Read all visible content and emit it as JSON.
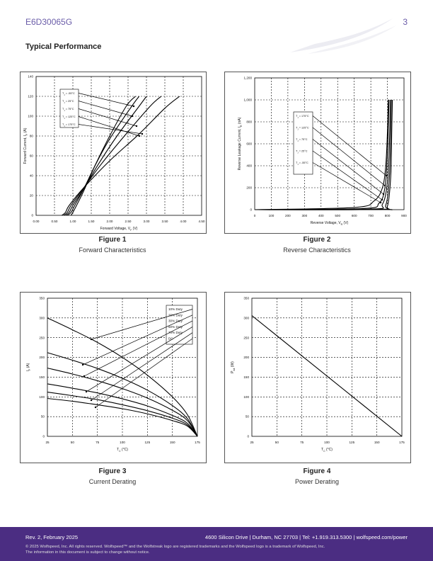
{
  "header": {
    "part_number": "E6D30065G",
    "page_number": "3"
  },
  "section_title": "Typical Performance",
  "figures": [
    {
      "label": "Figure 1",
      "caption": "Forward Characteristics"
    },
    {
      "label": "Figure 2",
      "caption": "Reverse Characteristics"
    },
    {
      "label": "Figure 3",
      "caption": "Current Derating"
    },
    {
      "label": "Figure 4",
      "caption": "Power Derating"
    }
  ],
  "chart_data": [
    {
      "type": "line",
      "title": "",
      "xlabel": "Forward Voltage, V_F (V)",
      "ylabel": "Forward Current, I_F (A)",
      "xlim": [
        0,
        4.5
      ],
      "ylim": [
        0,
        140
      ],
      "xticks": [
        "0.00",
        "0.50",
        "1.00",
        "1.50",
        "2.00",
        "2.50",
        "3.00",
        "3.50",
        "4.00",
        "4.50"
      ],
      "yticks": [
        "0",
        "20",
        "40",
        "60",
        "80",
        "100",
        "120",
        "140"
      ],
      "grid": true,
      "legend": "top-left",
      "series": [
        {
          "name": "T_J = -55°C",
          "points": [
            [
              0.95,
              0
            ],
            [
              1.0,
              3
            ],
            [
              1.1,
              10
            ],
            [
              1.3,
              25
            ],
            [
              1.6,
              50
            ],
            [
              2.0,
              80
            ],
            [
              2.45,
              110
            ],
            [
              2.7,
              120
            ]
          ]
        },
        {
          "name": "T_J = 25°C",
          "points": [
            [
              0.85,
              0
            ],
            [
              0.95,
              3
            ],
            [
              1.05,
              10
            ],
            [
              1.3,
              27
            ],
            [
              1.6,
              50
            ],
            [
              2.0,
              77
            ],
            [
              2.6,
              110
            ],
            [
              2.8,
              120
            ]
          ]
        },
        {
          "name": "T_J = 75°C",
          "points": [
            [
              0.8,
              0
            ],
            [
              0.9,
              3
            ],
            [
              1.0,
              10
            ],
            [
              1.3,
              27
            ],
            [
              1.7,
              52
            ],
            [
              2.2,
              80
            ],
            [
              2.8,
              110
            ],
            [
              3.0,
              120
            ]
          ]
        },
        {
          "name": "T_J = 125°C",
          "points": [
            [
              0.75,
              0
            ],
            [
              0.85,
              3
            ],
            [
              0.95,
              10
            ],
            [
              1.3,
              28
            ],
            [
              1.8,
              53
            ],
            [
              2.4,
              80
            ],
            [
              3.1,
              110
            ],
            [
              3.4,
              120
            ]
          ]
        },
        {
          "name": "T_J = 175°C",
          "points": [
            [
              0.7,
              0
            ],
            [
              0.8,
              3
            ],
            [
              0.9,
              10
            ],
            [
              1.3,
              28
            ],
            [
              2.0,
              55
            ],
            [
              2.8,
              82
            ],
            [
              3.5,
              108
            ],
            [
              3.9,
              120
            ]
          ]
        }
      ]
    },
    {
      "type": "line",
      "title": "",
      "xlabel": "Reverse Voltage, V_R (V)",
      "ylabel": "Reverse Leakage Current, I_R (nA)",
      "xlim": [
        0,
        900
      ],
      "ylim": [
        0,
        1200
      ],
      "xticks": [
        "0",
        "100",
        "200",
        "300",
        "400",
        "500",
        "600",
        "700",
        "800",
        "900"
      ],
      "yticks": [
        "0",
        "200",
        "400",
        "600",
        "800",
        "1,000",
        "1,200"
      ],
      "grid": true,
      "legend": "center",
      "series": [
        {
          "name": "T_J = 175°C",
          "points": [
            [
              0,
              0
            ],
            [
              600,
              20
            ],
            [
              720,
              80
            ],
            [
              770,
              200
            ],
            [
              790,
              400
            ],
            [
              800,
              700
            ],
            [
              805,
              1000
            ]
          ]
        },
        {
          "name": "T_J = 125°C",
          "points": [
            [
              0,
              0
            ],
            [
              650,
              10
            ],
            [
              750,
              60
            ],
            [
              785,
              200
            ],
            [
              800,
              500
            ],
            [
              810,
              1000
            ]
          ]
        },
        {
          "name": "T_J = 75°C",
          "points": [
            [
              0,
              0
            ],
            [
              700,
              5
            ],
            [
              770,
              50
            ],
            [
              800,
              250
            ],
            [
              812,
              600
            ],
            [
              818,
              1000
            ]
          ]
        },
        {
          "name": "T_J = 25°C",
          "points": [
            [
              0,
              0
            ],
            [
              740,
              3
            ],
            [
              790,
              40
            ],
            [
              812,
              300
            ],
            [
              820,
              700
            ],
            [
              824,
              1000
            ]
          ]
        },
        {
          "name": "T_J = -55°C",
          "points": [
            [
              0,
              0
            ],
            [
              760,
              2
            ],
            [
              800,
              30
            ],
            [
              820,
              300
            ],
            [
              826,
              700
            ],
            [
              830,
              1000
            ]
          ]
        }
      ]
    },
    {
      "type": "line",
      "title": "",
      "xlabel": "T_C (°C)",
      "ylabel": "I_F (A)",
      "xlim": [
        25,
        175
      ],
      "ylim": [
        0,
        350
      ],
      "xticks": [
        "25",
        "50",
        "75",
        "100",
        "125",
        "150",
        "175"
      ],
      "yticks": [
        "0",
        "50",
        "100",
        "150",
        "200",
        "250",
        "300",
        "350"
      ],
      "grid": true,
      "legend": "top-right",
      "series": [
        {
          "name": "10% Duty",
          "points": [
            [
              25,
              300
            ],
            [
              50,
              270
            ],
            [
              75,
              238
            ],
            [
              100,
              200
            ],
            [
              125,
              155
            ],
            [
              150,
              100
            ],
            [
              165,
              55
            ],
            [
              175,
              0
            ]
          ]
        },
        {
          "name": "20% Duty",
          "points": [
            [
              25,
              212
            ],
            [
              50,
              193
            ],
            [
              75,
              172
            ],
            [
              100,
              147
            ],
            [
              125,
              117
            ],
            [
              150,
              78
            ],
            [
              165,
              45
            ],
            [
              175,
              0
            ]
          ]
        },
        {
          "name": "30% Duty",
          "points": [
            [
              25,
              173
            ],
            [
              50,
              158
            ],
            [
              75,
              141
            ],
            [
              100,
              121
            ],
            [
              125,
              97
            ],
            [
              150,
              66
            ],
            [
              165,
              40
            ],
            [
              175,
              0
            ]
          ]
        },
        {
          "name": "50% Duty",
          "points": [
            [
              25,
              133
            ],
            [
              50,
              122
            ],
            [
              75,
              110
            ],
            [
              100,
              95
            ],
            [
              125,
              77
            ],
            [
              150,
              53
            ],
            [
              165,
              33
            ],
            [
              175,
              0
            ]
          ]
        },
        {
          "name": "70% Duty",
          "points": [
            [
              25,
              112
            ],
            [
              50,
              103
            ],
            [
              75,
              93
            ],
            [
              100,
              80
            ],
            [
              125,
              65
            ],
            [
              150,
              46
            ],
            [
              165,
              29
            ],
            [
              175,
              0
            ]
          ]
        },
        {
          "name": "DC",
          "points": [
            [
              25,
              96
            ],
            [
              50,
              89
            ],
            [
              75,
              80
            ],
            [
              100,
              70
            ],
            [
              125,
              57
            ],
            [
              150,
              40
            ],
            [
              165,
              26
            ],
            [
              175,
              0
            ]
          ]
        }
      ]
    },
    {
      "type": "line",
      "title": "",
      "xlabel": "T_C (°C)",
      "ylabel": "P_tot (W)",
      "xlim": [
        25,
        175
      ],
      "ylim": [
        0,
        350
      ],
      "xticks": [
        "25",
        "50",
        "75",
        "100",
        "125",
        "150",
        "175"
      ],
      "yticks": [
        "0",
        "50",
        "100",
        "150",
        "200",
        "250",
        "300",
        "350"
      ],
      "grid": true,
      "legend": "none",
      "series": [
        {
          "name": "",
          "points": [
            [
              25,
              306
            ],
            [
              175,
              0
            ]
          ]
        }
      ]
    }
  ],
  "footer": {
    "revision": "Rev. 2, February 2025",
    "address": "4600 Silicon Drive  |  Durham, NC 27703  |  Tel: +1.919.313.5300  |  wolfspeed.com/power",
    "copyright_1": "© 2025 Wolfspeed, Inc. All rights reserved. Wolfspeed™ and the Wolfstreak logo are registered trademarks and the Wolfspeed logo is a trademark of Wolfspeed, Inc.",
    "copyright_2": "The information in this document is subject to change without notice."
  },
  "colors": {
    "footer_bg": "#4b2d82",
    "header_text": "#6a5ca8"
  }
}
